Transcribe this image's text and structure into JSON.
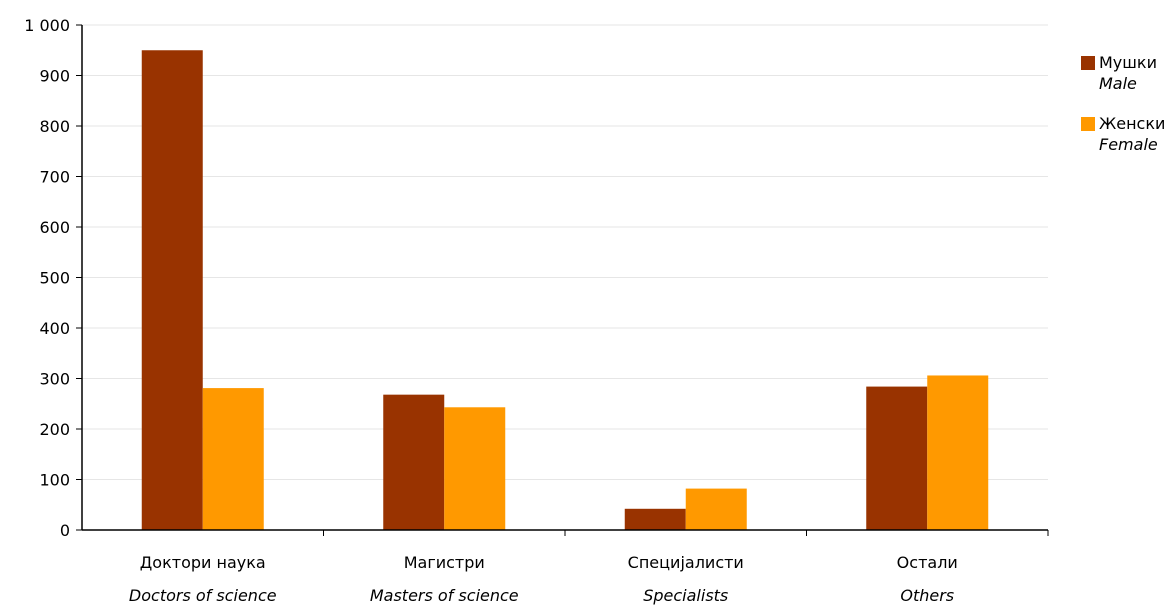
{
  "chart_data": {
    "type": "bar",
    "categories": [
      {
        "label": "Доктори наука",
        "label_en": "Doctors of science"
      },
      {
        "label": "Магистри",
        "label_en": "Masters of science"
      },
      {
        "label": "Специјалисти",
        "label_en": "Specialists"
      },
      {
        "label": "Остали",
        "label_en": "Others"
      }
    ],
    "series": [
      {
        "name": "Мушки",
        "name_en": "Male",
        "color": "#993300",
        "values": [
          950,
          268,
          42,
          284
        ]
      },
      {
        "name": "Женски",
        "name_en": "Female",
        "color": "#ff9900",
        "values": [
          281,
          243,
          82,
          306
        ]
      }
    ],
    "ylim": [
      0,
      1000
    ],
    "yticks": [
      0,
      100,
      200,
      300,
      400,
      500,
      600,
      700,
      800,
      900,
      1000
    ],
    "ytick_labels": [
      "0",
      "100",
      "200",
      "300",
      "400",
      "500",
      "600",
      "700",
      "800",
      "900",
      "1 000"
    ],
    "grid": true,
    "legend_position": "right"
  }
}
